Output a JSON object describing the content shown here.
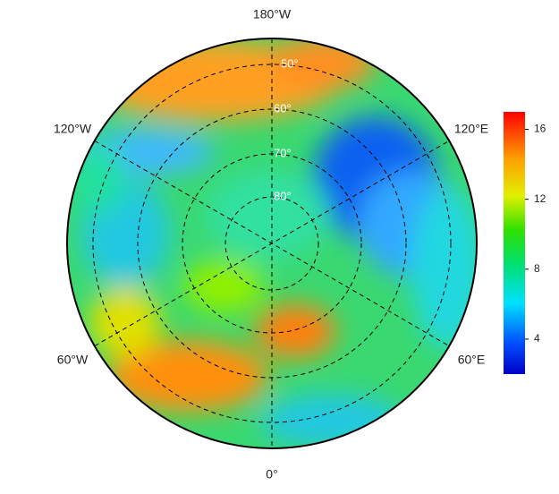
{
  "map": {
    "longitude_labels": [
      "180°W",
      "120°W",
      "120°E",
      "60°W",
      "60°E",
      "0°"
    ],
    "latitude_labels": [
      "50°",
      "60°",
      "70°",
      "80°"
    ],
    "colorbar": {
      "lim": [
        2,
        17
      ],
      "ticks": [
        4,
        8,
        12,
        16
      ]
    }
  }
}
